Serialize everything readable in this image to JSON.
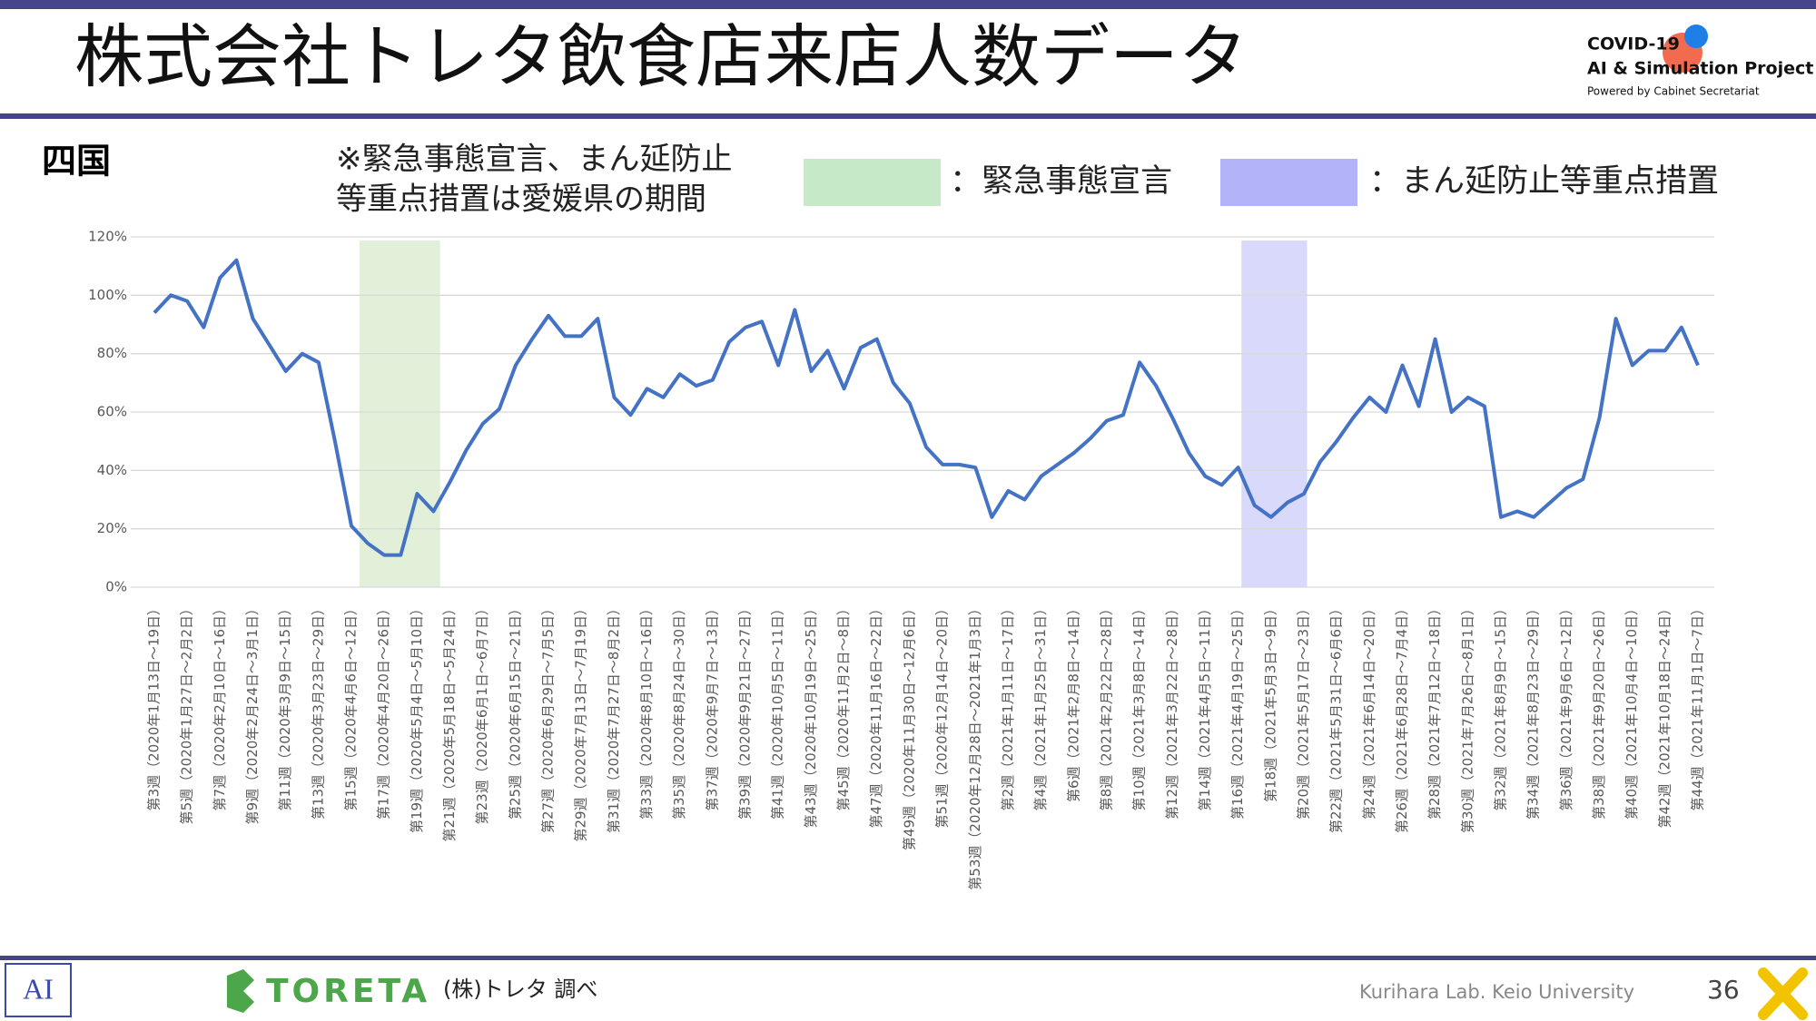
{
  "header": {
    "title": "株式会社トレタ飲食店来店人数データ",
    "logo_lines": [
      "COVID-19",
      "AI & Simulation Project",
      "Powered by Cabinet Secretariat"
    ]
  },
  "footer": {
    "brand": "TORETA",
    "source": "(株)トレタ 調べ",
    "lab": "Kurihara Lab. Keio University",
    "page": "36"
  },
  "chart_data": {
    "type": "line",
    "title": "四国",
    "note": [
      "※緊急事態宣言、まん延防止",
      "等重点措置は愛媛県の期間"
    ],
    "bands": [
      {
        "label": "：緊急事態宣言",
        "color": "#c6e9c8",
        "fill": "#e2f0d9",
        "range": [
          12.5,
          17.4
        ]
      },
      {
        "label": "：まん延防止等重点措置",
        "color": "#b3b3f9",
        "fill": "#d9d9fb",
        "range": [
          66.2,
          70.2
        ]
      }
    ],
    "categories": [
      "第3週（2020年1月13日～19日）",
      null,
      "第5週（2020年1月27日～2月2日）",
      null,
      "第7週（2020年2月10日～16日）",
      null,
      "第9週（2020年2月24日～3月1日）",
      null,
      "第11週（2020年3月9日～15日）",
      null,
      "第13週（2020年3月23日～29日）",
      null,
      "第15週（2020年4月6日～12日）",
      null,
      "第17週（2020年4月20日～26日）",
      null,
      "第19週（2020年5月4日～5月10日）",
      null,
      "第21週（2020年5月18日～5月24日）",
      null,
      "第23週（2020年6月1日～6月7日）",
      null,
      "第25週（2020年6月15日～21日）",
      null,
      "第27週（2020年6月29日～7月5日）",
      null,
      "第29週（2020年7月13日～7月19日）",
      null,
      "第31週（2020年7月27日～8月2日）",
      null,
      "第33週（2020年8月10日～16日）",
      null,
      "第35週（2020年8月24日～30日）",
      null,
      "第37週（2020年9月7日～13日）",
      null,
      "第39週（2020年9月21日～27日）",
      null,
      "第41週（2020年10月5日～11日）",
      null,
      "第43週（2020年10月19日～25日）",
      null,
      "第45週（2020年11月2日～8日）",
      null,
      "第47週（2020年11月16日～22日）",
      null,
      "第49週（2020年11月30日～12月6日）",
      null,
      "第51週（2020年12月14日～20日）",
      null,
      "第53週（2020年12月28日～2021年1月3日）",
      null,
      "第2週（2021年1月11日～17日）",
      null,
      "第4週（2021年1月25日～31日）",
      null,
      "第6週（2021年2月8日～14日）",
      null,
      "第8週（2021年2月22日～28日）",
      null,
      "第10週（2021年3月8日～14日）",
      null,
      "第12週（2021年3月22日～28日）",
      null,
      "第14週（2021年4月5日～11日）",
      null,
      "第16週（2021年4月19日～25日）",
      null,
      "第18週（2021年5月3日～9日）",
      null,
      "第20週（2021年5月17日～23日）",
      null,
      "第22週（2021年5月31日～6月6日）",
      null,
      "第24週（2021年6月14日～20日）",
      null,
      "第26週（2021年6月28日～7月4日）",
      null,
      "第28週（2021年7月12日～18日）",
      null,
      "第30週（2021年7月26日～8月1日）",
      null,
      "第32週（2021年8月9日～15日）",
      null,
      "第34週（2021年8月23日～29日）",
      null,
      "第36週（2021年9月6日～12日）",
      null,
      "第38週（2021年9月20日～26日）",
      null,
      "第40週（2021年10月4日～10日）",
      null,
      "第42週（2021年10月18日～24日）",
      null,
      "第44週（2021年11月1日～7日）"
    ],
    "values": [
      94,
      100,
      98,
      89,
      106,
      112,
      92,
      83,
      74,
      80,
      77,
      50,
      21,
      15,
      11,
      11,
      32,
      26,
      36,
      47,
      56,
      61,
      76,
      85,
      93,
      86,
      86,
      92,
      65,
      59,
      68,
      65,
      73,
      69,
      71,
      84,
      89,
      91,
      76,
      95,
      74,
      81,
      68,
      82,
      85,
      70,
      63,
      48,
      42,
      42,
      41,
      24,
      33,
      30,
      38,
      42,
      46,
      51,
      57,
      59,
      77,
      69,
      58,
      46,
      38,
      35,
      41,
      28,
      24,
      29,
      32,
      43,
      50,
      58,
      65,
      60,
      76,
      62,
      85,
      60,
      65,
      62,
      24,
      26,
      24,
      29,
      34,
      37,
      58,
      92,
      76,
      81,
      81,
      89,
      76
    ],
    "color": "#4472c4",
    "ylim": [
      0,
      120
    ],
    "yticks": [
      {
        "value": 0,
        "label": "0%"
      },
      {
        "value": 20,
        "label": "20%"
      },
      {
        "value": 40,
        "label": "40%"
      },
      {
        "value": 60,
        "label": "60%"
      },
      {
        "value": 80,
        "label": "80%"
      },
      {
        "value": 100,
        "label": "100%"
      },
      {
        "value": 120,
        "label": "120%"
      }
    ],
    "grid": true
  }
}
